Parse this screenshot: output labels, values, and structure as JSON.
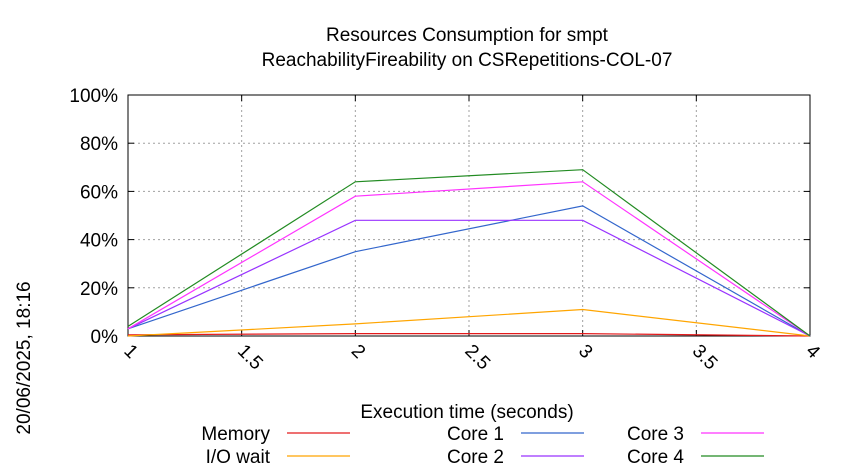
{
  "chart_data": {
    "type": "line",
    "title": "Resources Consumption for smpt",
    "subtitle": "ReachabilityFireability on CSRepetitions-COL-07",
    "xlabel": "Execution time (seconds)",
    "ylabel": "",
    "side_label": "20/06/2025, 18:16",
    "xlim": [
      1,
      4
    ],
    "ylim": [
      0,
      100
    ],
    "x_ticks": [
      "1",
      "1.5",
      "2",
      "2.5",
      "3",
      "3.5",
      "4"
    ],
    "x_tick_values": [
      1,
      1.5,
      2,
      2.5,
      3,
      3.5,
      4
    ],
    "y_ticks": [
      "0%",
      "20%",
      "40%",
      "60%",
      "80%",
      "100%"
    ],
    "y_tick_values": [
      0,
      20,
      40,
      60,
      80,
      100
    ],
    "grid": true,
    "legend_position": "bottom",
    "x": [
      1,
      2,
      3,
      4
    ],
    "series": [
      {
        "name": "Memory",
        "color": "#e41a1c",
        "values": [
          0.5,
          1,
          1,
          0
        ]
      },
      {
        "name": "I/O wait",
        "color": "#ffa500",
        "values": [
          0,
          5,
          11,
          0
        ]
      },
      {
        "name": "Core 1",
        "color": "#3366cc",
        "values": [
          3,
          35,
          54,
          0
        ]
      },
      {
        "name": "Core 2",
        "color": "#9933ff",
        "values": [
          3,
          48,
          48,
          0
        ]
      },
      {
        "name": "Core 3",
        "color": "#ff33ff",
        "values": [
          3,
          58,
          64,
          0
        ]
      },
      {
        "name": "Core 4",
        "color": "#228b22",
        "values": [
          4,
          64,
          69,
          0
        ]
      }
    ]
  }
}
